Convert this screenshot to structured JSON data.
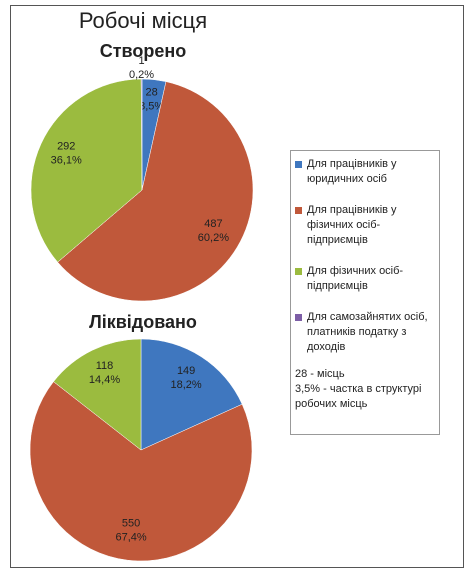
{
  "title": "Робочі місця",
  "legend_note": [
    "28 - місць",
    "3,5% - частка в структурі робочих місць"
  ],
  "chart_data": [
    {
      "type": "pie",
      "title": "Створено",
      "categories": [
        "Для працівників у юридичних осіб",
        "Для працівників у фізичних осіб-підприємців",
        "Для фізичних осіб-підприємців",
        "Для самозайнятих осіб, платників податку з доходів"
      ],
      "values": [
        28,
        487,
        292,
        1
      ],
      "share_labels": [
        "3,5%",
        "60,2%",
        "36,1%",
        "0,2%"
      ],
      "colors": [
        "#3f77bf",
        "#c0583a",
        "#9bbb3f",
        "#7d5ea6"
      ]
    },
    {
      "type": "pie",
      "title": "Ліквідовано",
      "categories": [
        "Для працівників у юридичних осіб",
        "Для працівників у фізичних осіб-підприємців",
        "Для фізичних осіб-підприємців"
      ],
      "values": [
        149,
        550,
        118
      ],
      "share_labels": [
        "18,2%",
        "67,4%",
        "14,4%"
      ],
      "colors": [
        "#3f77bf",
        "#c0583a",
        "#9bbb3f"
      ]
    }
  ]
}
